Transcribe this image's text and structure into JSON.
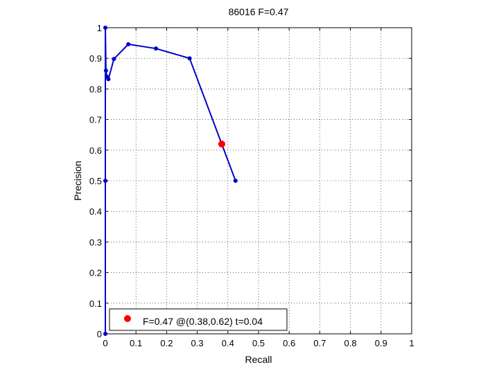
{
  "chart_data": {
    "type": "line",
    "title": "86016 F=0.47",
    "xlabel": "Recall",
    "ylabel": "Precision",
    "xlim": [
      0,
      1
    ],
    "ylim": [
      0,
      1
    ],
    "xticks": [
      0,
      0.1,
      0.2,
      0.3,
      0.4,
      0.5,
      0.6,
      0.7,
      0.8,
      0.9,
      1
    ],
    "yticks": [
      0,
      0.1,
      0.2,
      0.3,
      0.4,
      0.5,
      0.6,
      0.7,
      0.8,
      0.9,
      1
    ],
    "xtick_labels": [
      "0",
      "0.1",
      "0.2",
      "0.3",
      "0.4",
      "0.5",
      "0.6",
      "0.7",
      "0.8",
      "0.9",
      "1"
    ],
    "ytick_labels": [
      "0",
      "0.1",
      "0.2",
      "0.3",
      "0.4",
      "0.5",
      "0.6",
      "0.7",
      "0.8",
      "0.9",
      "1"
    ],
    "grid": true,
    "series": [
      {
        "color": "#0000cc",
        "marker": "dot",
        "x": [
          0,
          0,
          0,
          0.002,
          0.005,
          0.01,
          0.028,
          0.075,
          0.165,
          0.275,
          0.425
        ],
        "y": [
          0,
          0.5,
          1,
          0.86,
          0.84,
          0.832,
          0.898,
          0.946,
          0.932,
          0.9,
          0.5
        ]
      }
    ],
    "highlight": {
      "x": 0.38,
      "y": 0.62,
      "color": "#ff0000"
    },
    "legend": {
      "position": "bottom-left",
      "label": "F=0.47 @(0.38,0.62) t=0.04"
    }
  }
}
